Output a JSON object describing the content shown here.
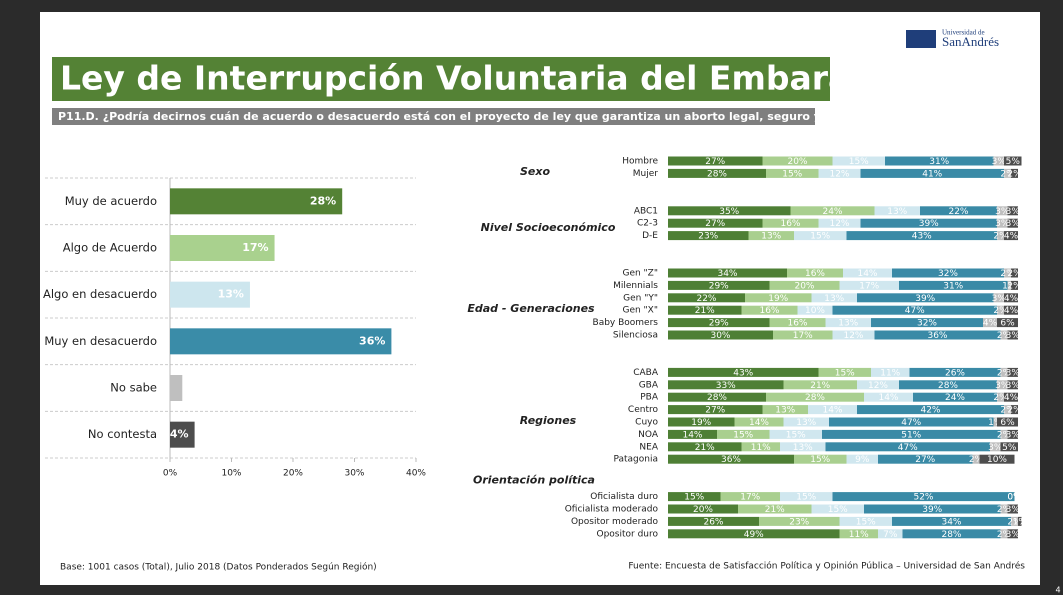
{
  "header": {
    "title": "Ley de Interrupción Voluntaria del Embarazo",
    "subtitle": "P11.D. ¿Podría decirnos cuán de acuerdo o desacuerdo está con el proyecto de ley que garantiza un aborto legal, seguro y gratuito?"
  },
  "logo": {
    "line1": "Universidad de",
    "line2": "SanAndrés"
  },
  "footer": {
    "base": "Base: 1001 casos (Total),  Julio 2018 (Datos Ponderados Según Región)",
    "source": "Fuente: Encuesta de Satisfacción Política y Opinión Pública – Universidad de San Andrés",
    "page": "4"
  },
  "chart_data": [
    {
      "type": "hbar",
      "categories": [
        "Muy de acuerdo",
        "Algo de Acuerdo",
        "Algo en desacuerdo",
        "Muy en desacuerdo",
        "No sabe",
        "No contesta"
      ],
      "values": [
        28,
        17,
        13,
        36,
        2,
        4
      ],
      "value_labels": [
        "28%",
        "17%",
        "13%",
        "36%",
        null,
        "4%"
      ],
      "colors": [
        "#548235",
        "#a9d18e",
        "#cde6ee",
        "#3a8ca8",
        "#bfbfbf",
        "#4d4d4d"
      ],
      "xlim": [
        0,
        40
      ],
      "xticks": [
        {
          "value": 0,
          "label": "0%"
        },
        {
          "value": 10,
          "label": "10%"
        },
        {
          "value": 20,
          "label": "20%"
        },
        {
          "value": 30,
          "label": "30%"
        },
        {
          "value": 40,
          "label": "40%"
        }
      ]
    },
    {
      "type": "stacked_hbar",
      "groups": [
        {
          "name": "Sexo",
          "categories": [
            "Hombre",
            "Mujer"
          ]
        },
        {
          "name": "Nivel Socioeconómico",
          "categories": [
            "ABC1",
            "C2-3",
            "D-E"
          ]
        },
        {
          "name": "Edad - Generaciones",
          "categories": [
            "Gen \"Z\"",
            "Milennials",
            "Gen \"Y\"",
            "Gen \"X\"",
            "Baby Boomers",
            "Silenciosa"
          ]
        },
        {
          "name": "Regiones",
          "categories": [
            "CABA",
            "GBA",
            "PBA",
            "Centro",
            "Cuyo",
            "NOA",
            "NEA",
            "Patagonia"
          ]
        },
        {
          "name": "Orientación política",
          "categories": [
            "Oficialista duro",
            "Oficialista moderado",
            "Opositor moderado",
            "Opositor duro"
          ]
        }
      ],
      "xlim": [
        0,
        100
      ],
      "series": [
        {
          "color": "#4e7f35",
          "values": [
            27,
            28,
            35,
            27,
            23,
            34,
            29,
            22,
            21,
            29,
            30,
            43,
            33,
            28,
            27,
            19,
            14,
            21,
            36,
            15,
            20,
            26,
            49
          ],
          "value_labels": [
            "27%",
            "28%",
            "35%",
            "27%",
            "23%",
            "34%",
            "29%",
            "22%",
            "21%",
            "29%",
            "30%",
            "43%",
            "33%",
            "28%",
            "27%",
            "19%",
            "14%",
            "21%",
            "36%",
            "15%",
            "20%",
            "26%",
            "49%"
          ]
        },
        {
          "color": "#a9cf8f",
          "values": [
            20,
            15,
            24,
            16,
            13,
            16,
            20,
            19,
            16,
            16,
            17,
            15,
            21,
            28,
            13,
            14,
            15,
            11,
            15,
            17,
            21,
            23,
            11
          ],
          "value_labels": [
            "20%",
            "15%",
            "24%",
            "16%",
            "13%",
            "16%",
            "20%",
            "19%",
            "16%",
            "16%",
            "17%",
            "15%",
            "21%",
            "28%",
            "13%",
            "14%",
            "15%",
            "11%",
            "15%",
            "17%",
            "21%",
            "23%",
            "11%"
          ]
        },
        {
          "color": "#d0e7ef",
          "values": [
            15,
            12,
            13,
            12,
            15,
            14,
            17,
            13,
            10,
            13,
            12,
            11,
            12,
            14,
            14,
            13,
            15,
            13,
            9,
            15,
            15,
            15,
            7
          ],
          "value_labels": [
            "15%",
            "12%",
            "13%",
            "12%",
            "15%",
            "14%",
            "17%",
            "13%",
            "10%",
            "13%",
            "12%",
            "11%",
            "12%",
            "14%",
            "14%",
            "13%",
            "15%",
            "13%",
            "9%",
            "15%",
            "15%",
            "15%",
            "7%"
          ]
        },
        {
          "color": "#3a8aa6",
          "values": [
            31,
            41,
            22,
            39,
            43,
            32,
            31,
            39,
            47,
            32,
            36,
            26,
            28,
            24,
            42,
            47,
            51,
            47,
            27,
            52,
            39,
            34,
            28
          ],
          "value_labels": [
            "31%",
            "41%",
            "22%",
            "39%",
            "43%",
            "32%",
            "31%",
            "39%",
            "47%",
            "32%",
            "36%",
            "26%",
            "28%",
            "24%",
            "42%",
            "47%",
            "51%",
            "47%",
            "27%",
            "52%",
            "39%",
            "34%",
            "28%"
          ]
        },
        {
          "color": "#bfbfbf",
          "values": [
            3,
            2,
            3,
            3,
            2,
            2,
            1,
            3,
            2,
            4,
            2,
            2,
            3,
            2,
            2,
            1,
            2,
            3,
            2,
            0,
            2,
            2,
            2
          ],
          "value_labels": [
            "3%",
            "2%",
            "3%",
            "3%",
            "2%",
            "2%",
            "1%",
            "3%",
            "2%",
            "4%",
            "2%",
            "2%",
            "3%",
            "2%",
            "2%",
            "1%",
            "2%",
            "3%",
            "2%",
            "0%",
            "2%",
            "2%",
            "2%"
          ]
        },
        {
          "color": "#4d4d4d",
          "values": [
            5,
            2,
            3,
            3,
            4,
            2,
            2,
            4,
            4,
            6,
            3,
            3,
            3,
            4,
            2,
            6,
            3,
            5,
            10,
            0,
            3,
            1,
            3
          ],
          "value_labels": [
            "5%",
            "2%",
            "3%",
            "3%",
            "4%",
            "2%",
            "2%",
            "4%",
            "4%",
            "6%",
            "3%",
            "3%",
            "3%",
            "4%",
            "2%",
            "6%",
            "3%",
            "5%",
            "10%",
            "0%",
            "3%",
            "1%",
            "3%"
          ]
        }
      ]
    }
  ]
}
